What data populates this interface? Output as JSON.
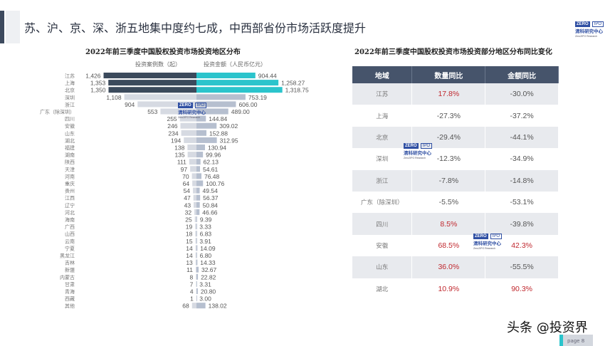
{
  "title": "苏、沪、京、深、浙五地集中度约七成，中西部省份市场活跃度提升",
  "logo": {
    "zero": "ZERO",
    "ipo": "IPO",
    "cn": "清科研究中心",
    "en": "Zero2IPO Research"
  },
  "chart_data": {
    "type": "bar",
    "title": "2022年前三季度中国股权投资市场投资地区分布",
    "orientation": "horizontal-butterfly",
    "categories": [
      "江苏",
      "上海",
      "北京",
      "深圳",
      "浙江",
      "广东（除深圳）",
      "四川",
      "安徽",
      "山东",
      "湖北",
      "福建",
      "湖南",
      "陕西",
      "天津",
      "河南",
      "重庆",
      "贵州",
      "江西",
      "辽宁",
      "河北",
      "海南",
      "广西",
      "山西",
      "云南",
      "宁夏",
      "黑龙江",
      "吉林",
      "新疆",
      "内蒙古",
      "甘肃",
      "青海",
      "西藏",
      "其他"
    ],
    "series": [
      {
        "name": "投资案例数（起）",
        "side": "left",
        "values": [
          1426,
          1353,
          1350,
          1108,
          904,
          553,
          255,
          246,
          234,
          194,
          138,
          135,
          111,
          97,
          70,
          64,
          54,
          47,
          43,
          32,
          25,
          19,
          18,
          15,
          14,
          14,
          13,
          11,
          8,
          7,
          4,
          1,
          68
        ],
        "labels": [
          "1,426",
          "1,353",
          "1,350",
          "1,108",
          "904",
          "553",
          "255",
          "246",
          "234",
          "194",
          "138",
          "135",
          "111",
          "97",
          "70",
          "64",
          "54",
          "47",
          "43",
          "32",
          "25",
          "19",
          "18",
          "15",
          "14",
          "14",
          "13",
          "11",
          "8",
          "7",
          "4",
          "1",
          "68"
        ]
      },
      {
        "name": "投资金额（人民币亿元）",
        "side": "right",
        "values": [
          904.44,
          1258.27,
          1318.75,
          753.19,
          606.0,
          489.0,
          144.84,
          309.02,
          152.88,
          312.95,
          130.94,
          99.96,
          62.13,
          54.61,
          76.48,
          100.76,
          49.54,
          56.37,
          50.84,
          46.66,
          9.39,
          3.33,
          6.83,
          3.91,
          14.09,
          6.8,
          14.33,
          32.67,
          22.82,
          3.31,
          20.8,
          3.0,
          138.02
        ],
        "labels": [
          "904.44",
          "1,258.27",
          "1,318.75",
          "753.19",
          "606.00",
          "489.00",
          "144.84",
          "309.02",
          "152.88",
          "312.95",
          "130.94",
          "99.96",
          "62.13",
          "54.61",
          "76.48",
          "100.76",
          "49.54",
          "56.37",
          "50.84",
          "46.66",
          "9.39",
          "3.33",
          "6.83",
          "3.91",
          "14.09",
          "6.80",
          "14.33",
          "32.67",
          "22.82",
          "3.31",
          "20.80",
          "3.00",
          "138.02"
        ]
      }
    ],
    "highlight_top": 3,
    "colors": {
      "left_top": "#3b4a5c",
      "right_top": "#2bc4cc",
      "left": "#d6dae2",
      "right": "#b6bfcf"
    }
  },
  "table": {
    "title": "2022年前三季度中国股权投资市场投资部分地区分布同比变化",
    "headers": [
      "地域",
      "数量同比",
      "金额同比"
    ],
    "rows": [
      {
        "region": "江苏",
        "count": "17.8%",
        "amount": "-30.0%",
        "count_up": true,
        "amount_up": false
      },
      {
        "region": "上海",
        "count": "-27.3%",
        "amount": "-37.2%",
        "count_up": false,
        "amount_up": false
      },
      {
        "region": "北京",
        "count": "-29.4%",
        "amount": "-44.1%",
        "count_up": false,
        "amount_up": false
      },
      {
        "region": "深圳",
        "count": "-12.3%",
        "amount": "-34.9%",
        "count_up": false,
        "amount_up": false
      },
      {
        "region": "浙江",
        "count": "-7.8%",
        "amount": "-14.8%",
        "count_up": false,
        "amount_up": false
      },
      {
        "region": "广东（除深圳）",
        "count": "-5.5%",
        "amount": "-53.1%",
        "count_up": false,
        "amount_up": false
      },
      {
        "region": "四川",
        "count": "8.5%",
        "amount": "-39.8%",
        "count_up": true,
        "amount_up": false
      },
      {
        "region": "安徽",
        "count": "68.5%",
        "amount": "42.3%",
        "count_up": true,
        "amount_up": true
      },
      {
        "region": "山东",
        "count": "36.0%",
        "amount": "-55.5%",
        "count_up": true,
        "amount_up": false
      },
      {
        "region": "湖北",
        "count": "10.9%",
        "amount": "90.3%",
        "count_up": true,
        "amount_up": true
      }
    ],
    "positive_color": "#c0282e"
  },
  "footer": {
    "watermark": "头条 @投资界",
    "page": "page 8"
  }
}
